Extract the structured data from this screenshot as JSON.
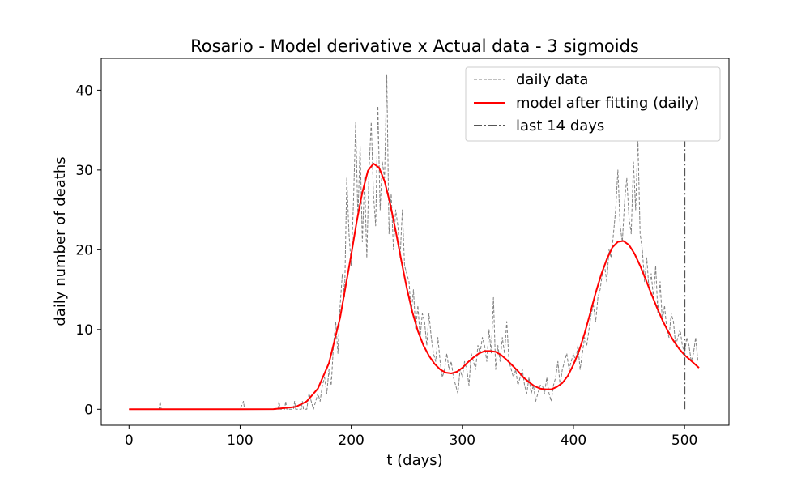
{
  "chart_data": {
    "type": "line",
    "title": "Rosario - Model derivative x Actual data - 3 sigmoids",
    "xlabel": "t (days)",
    "ylabel": "daily number of deaths",
    "xlim": [
      -25,
      540
    ],
    "ylim": [
      -2,
      44
    ],
    "xticks": [
      0,
      100,
      200,
      300,
      400,
      500
    ],
    "yticks": [
      0,
      10,
      20,
      30,
      40
    ],
    "grid": false,
    "legend_position": "top-right",
    "series": [
      {
        "name": "daily data",
        "style": "dashed",
        "color": "#808080",
        "x": [
          0,
          10,
          20,
          27,
          28,
          29,
          40,
          60,
          80,
          100,
          103,
          104,
          105,
          120,
          134,
          135,
          136,
          140,
          141,
          142,
          148,
          149,
          150,
          155,
          156,
          157,
          160,
          162,
          164,
          166,
          168,
          170,
          172,
          174,
          176,
          178,
          180,
          182,
          184,
          186,
          188,
          190,
          192,
          194,
          196,
          198,
          200,
          202,
          204,
          206,
          208,
          210,
          212,
          214,
          216,
          218,
          220,
          222,
          224,
          226,
          228,
          230,
          232,
          234,
          236,
          238,
          240,
          242,
          244,
          246,
          248,
          250,
          252,
          254,
          256,
          258,
          260,
          262,
          264,
          266,
          268,
          270,
          272,
          274,
          276,
          278,
          280,
          282,
          284,
          286,
          288,
          290,
          292,
          294,
          296,
          298,
          300,
          302,
          304,
          306,
          308,
          310,
          312,
          314,
          316,
          318,
          320,
          322,
          324,
          326,
          328,
          330,
          332,
          334,
          336,
          338,
          340,
          342,
          344,
          346,
          348,
          350,
          352,
          354,
          356,
          358,
          360,
          362,
          364,
          366,
          368,
          370,
          372,
          374,
          376,
          378,
          380,
          382,
          384,
          386,
          388,
          390,
          392,
          394,
          396,
          398,
          400,
          402,
          404,
          406,
          408,
          410,
          412,
          414,
          416,
          418,
          420,
          422,
          424,
          426,
          428,
          430,
          432,
          434,
          436,
          438,
          440,
          442,
          444,
          446,
          448,
          450,
          452,
          454,
          456,
          458,
          460,
          462,
          464,
          466,
          468,
          470,
          472,
          474,
          476,
          478,
          480,
          482,
          484,
          486,
          488,
          490,
          492,
          494,
          496,
          498,
          500,
          502,
          504,
          506,
          508,
          510,
          512
        ],
        "y": [
          0,
          0,
          0,
          0,
          1,
          0,
          0,
          0,
          0,
          0,
          1,
          0,
          0,
          0,
          0,
          1,
          0,
          0,
          1,
          0,
          0,
          1,
          0,
          0,
          1,
          0,
          0,
          2,
          1,
          0,
          1,
          2,
          1,
          3,
          4,
          2,
          5,
          3,
          8,
          11,
          7,
          13,
          17,
          14,
          29,
          22,
          18,
          26,
          36,
          24,
          33,
          21,
          29,
          19,
          30,
          36,
          27,
          23,
          38,
          25,
          31,
          29,
          42,
          22,
          27,
          20,
          25,
          23,
          19,
          25,
          18,
          17,
          16,
          12,
          15,
          10,
          13,
          9,
          12,
          11,
          8,
          12,
          9,
          7,
          6,
          9,
          6,
          4,
          5,
          7,
          5,
          6,
          4,
          3,
          2,
          5,
          4,
          6,
          5,
          3,
          7,
          6,
          5,
          8,
          7,
          9,
          8,
          6,
          10,
          7,
          14,
          5,
          8,
          6,
          9,
          7,
          11,
          6,
          5,
          4,
          5,
          3,
          4,
          5,
          3,
          2,
          4,
          2,
          3,
          1,
          2,
          3,
          3,
          2,
          4,
          2,
          1,
          3,
          4,
          6,
          3,
          5,
          6,
          7,
          5,
          6,
          7,
          6,
          8,
          5,
          7,
          9,
          8,
          10,
          12,
          13,
          11,
          14,
          15,
          17,
          18,
          16,
          20,
          19,
          22,
          25,
          30,
          23,
          21,
          26,
          29,
          24,
          22,
          31,
          25,
          34,
          22,
          20,
          16,
          19,
          15,
          17,
          14,
          18,
          12,
          16,
          11,
          13,
          10,
          9,
          12,
          11,
          8,
          9,
          10,
          8,
          7,
          9,
          8,
          6,
          7,
          9,
          6
        ]
      },
      {
        "name": "model after fitting (daily)",
        "style": "solid",
        "color": "#ff0000",
        "x": [
          0,
          100,
          130,
          150,
          160,
          170,
          180,
          190,
          200,
          205,
          210,
          215,
          220,
          225,
          230,
          235,
          240,
          245,
          250,
          255,
          260,
          265,
          270,
          275,
          280,
          285,
          290,
          295,
          300,
          305,
          310,
          315,
          320,
          325,
          330,
          335,
          340,
          345,
          350,
          355,
          360,
          365,
          370,
          375,
          380,
          385,
          390,
          395,
          400,
          405,
          410,
          415,
          420,
          425,
          430,
          435,
          440,
          445,
          450,
          455,
          460,
          465,
          470,
          475,
          480,
          485,
          490,
          495,
          500,
          505,
          513
        ],
        "y": [
          0,
          0,
          0.02,
          0.3,
          1.0,
          2.6,
          5.8,
          11.5,
          19.4,
          23.6,
          27.2,
          29.9,
          30.8,
          30.3,
          28.6,
          25.8,
          22.4,
          18.7,
          15.2,
          12.2,
          9.8,
          8.0,
          6.7,
          5.7,
          5.0,
          4.6,
          4.5,
          4.7,
          5.2,
          5.9,
          6.5,
          7.0,
          7.3,
          7.3,
          7.2,
          6.8,
          6.2,
          5.5,
          4.8,
          4.0,
          3.4,
          2.9,
          2.6,
          2.5,
          2.5,
          2.8,
          3.3,
          4.2,
          5.6,
          7.3,
          9.5,
          12.0,
          14.6,
          16.9,
          18.8,
          20.3,
          21.0,
          21.1,
          20.6,
          19.5,
          18.0,
          16.3,
          14.5,
          12.8,
          11.2,
          9.8,
          8.6,
          7.6,
          6.8,
          6.2,
          5.2
        ]
      },
      {
        "name": "last 14 days",
        "style": "dashdot",
        "color": "#555555",
        "x": [
          500,
          500
        ],
        "y": [
          0,
          42
        ]
      }
    ]
  }
}
